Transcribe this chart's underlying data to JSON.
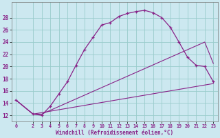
{
  "xlabel": "Windchill (Refroidissement éolien,°C)",
  "ylabel": "",
  "bg_color": "#cce8f0",
  "grid_color": "#99cccc",
  "line_color": "#882288",
  "xlim": [
    -0.5,
    23.5
  ],
  "ylim": [
    11.0,
    30.5
  ],
  "xticks": [
    0,
    2,
    3,
    4,
    5,
    6,
    7,
    8,
    9,
    10,
    11,
    12,
    13,
    14,
    15,
    16,
    17,
    18,
    19,
    20,
    21,
    22,
    23
  ],
  "yticks": [
    12,
    14,
    16,
    18,
    20,
    22,
    24,
    26,
    28
  ],
  "curve1_x": [
    0,
    2,
    3,
    4,
    5,
    6,
    7,
    8,
    9,
    10,
    11,
    12,
    13,
    14,
    15,
    16,
    17,
    18,
    19,
    20,
    21,
    22,
    23
  ],
  "curve1_y": [
    14.5,
    12.2,
    12.0,
    13.5,
    15.5,
    17.5,
    20.2,
    22.8,
    24.8,
    26.8,
    27.2,
    28.2,
    28.7,
    29.0,
    29.2,
    28.8,
    28.0,
    26.4,
    24.0,
    21.5,
    20.2,
    20.0,
    17.5
  ],
  "curve2_x": [
    0,
    2,
    3,
    22,
    23
  ],
  "curve2_y": [
    14.5,
    12.2,
    12.2,
    24.0,
    20.5
  ],
  "curve3_x": [
    0,
    2,
    23
  ],
  "curve3_y": [
    14.5,
    12.2,
    17.2
  ]
}
